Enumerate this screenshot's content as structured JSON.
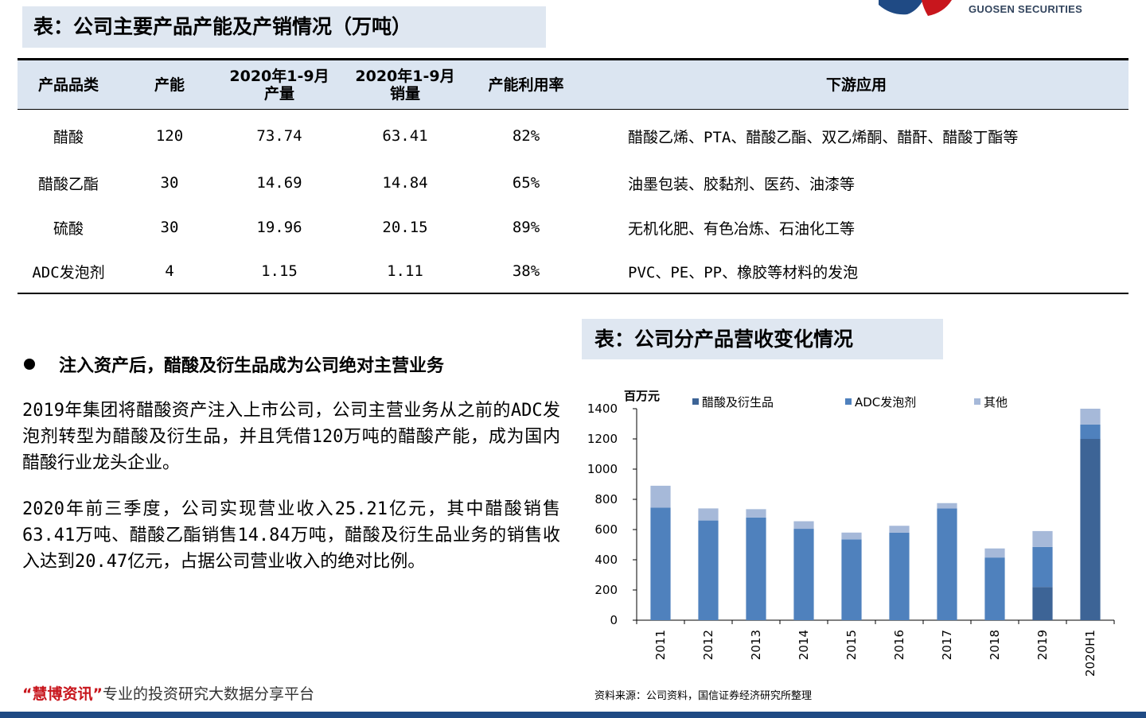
{
  "header": {
    "logo_text": "GUOSEN SECURITIES",
    "brand_red": "#c8161d",
    "brand_blue": "#1f4a84"
  },
  "table_section": {
    "title": "表：公司主要产品产能及产销情况（万吨）",
    "columns": [
      "产品品类",
      "产能",
      "2020年1-9月\n产量",
      "2020年1-9月\n销量",
      "产能利用率",
      "下游应用"
    ],
    "rows": [
      [
        "醋酸",
        "120",
        "73.74",
        "63.41",
        "82%",
        "醋酸乙烯、PTA、醋酸乙酯、双乙烯酮、醋酐、醋酸丁酯等"
      ],
      [
        "醋酸乙酯",
        "30",
        "14.69",
        "14.84",
        "65%",
        "油墨包装、胶黏剂、医药、油漆等"
      ],
      [
        "硫酸",
        "30",
        "19.96",
        "20.15",
        "89%",
        "无机化肥、有色冶炼、石油化工等"
      ],
      [
        "ADC发泡剂",
        "4",
        "1.15",
        "1.11",
        "38%",
        "PVC、PE、PP、橡胶等材料的发泡"
      ]
    ]
  },
  "text_section": {
    "bullet": "注入资产后，醋酸及衍生品成为公司绝对主营业务",
    "paragraph1": "2019年集团将醋酸资产注入上市公司，公司主营业务从之前的ADC发泡剂转型为醋酸及衍生品，并且凭借120万吨的醋酸产能，成为国内醋酸行业龙头企业。",
    "paragraph2": "2020年前三季度，公司实现营业收入25.21亿元，其中醋酸销售63.41万吨、醋酸乙酯销售14.84万吨，醋酸及衍生品业务的销售收入达到20.47亿元，占据公司营业收入的绝对比例。"
  },
  "chart_section": {
    "title": "表：公司分产品营收变化情况",
    "source": "资料来源：公司资料，国信证券经济研究所整理"
  },
  "chart_data": {
    "type": "bar",
    "stacked": true,
    "ylabel": "百万元",
    "ylim": [
      0,
      1400
    ],
    "yticks": [
      0,
      200,
      400,
      600,
      800,
      1000,
      1200,
      1400
    ],
    "categories": [
      "2011",
      "2012",
      "2013",
      "2014",
      "2015",
      "2016",
      "2017",
      "2018",
      "2019",
      "2020H1"
    ],
    "series": [
      {
        "name": "醋酸及衍生品",
        "color": "#3d6496",
        "values": [
          0,
          0,
          0,
          0,
          0,
          0,
          0,
          0,
          220,
          1200
        ]
      },
      {
        "name": "ADC发泡剂",
        "color": "#4f81bd",
        "values": [
          745,
          660,
          680,
          605,
          535,
          580,
          740,
          415,
          265,
          95
        ]
      },
      {
        "name": "其他",
        "color": "#a6b9d9",
        "values": [
          145,
          80,
          55,
          50,
          45,
          45,
          35,
          60,
          105,
          105
        ]
      }
    ],
    "legend_position": "top",
    "grid": false
  },
  "footer": {
    "brand_open": "“",
    "brand_name": "慧博资讯",
    "brand_close": "”",
    "slogan": "专业的投资研究大数据分享平台"
  }
}
